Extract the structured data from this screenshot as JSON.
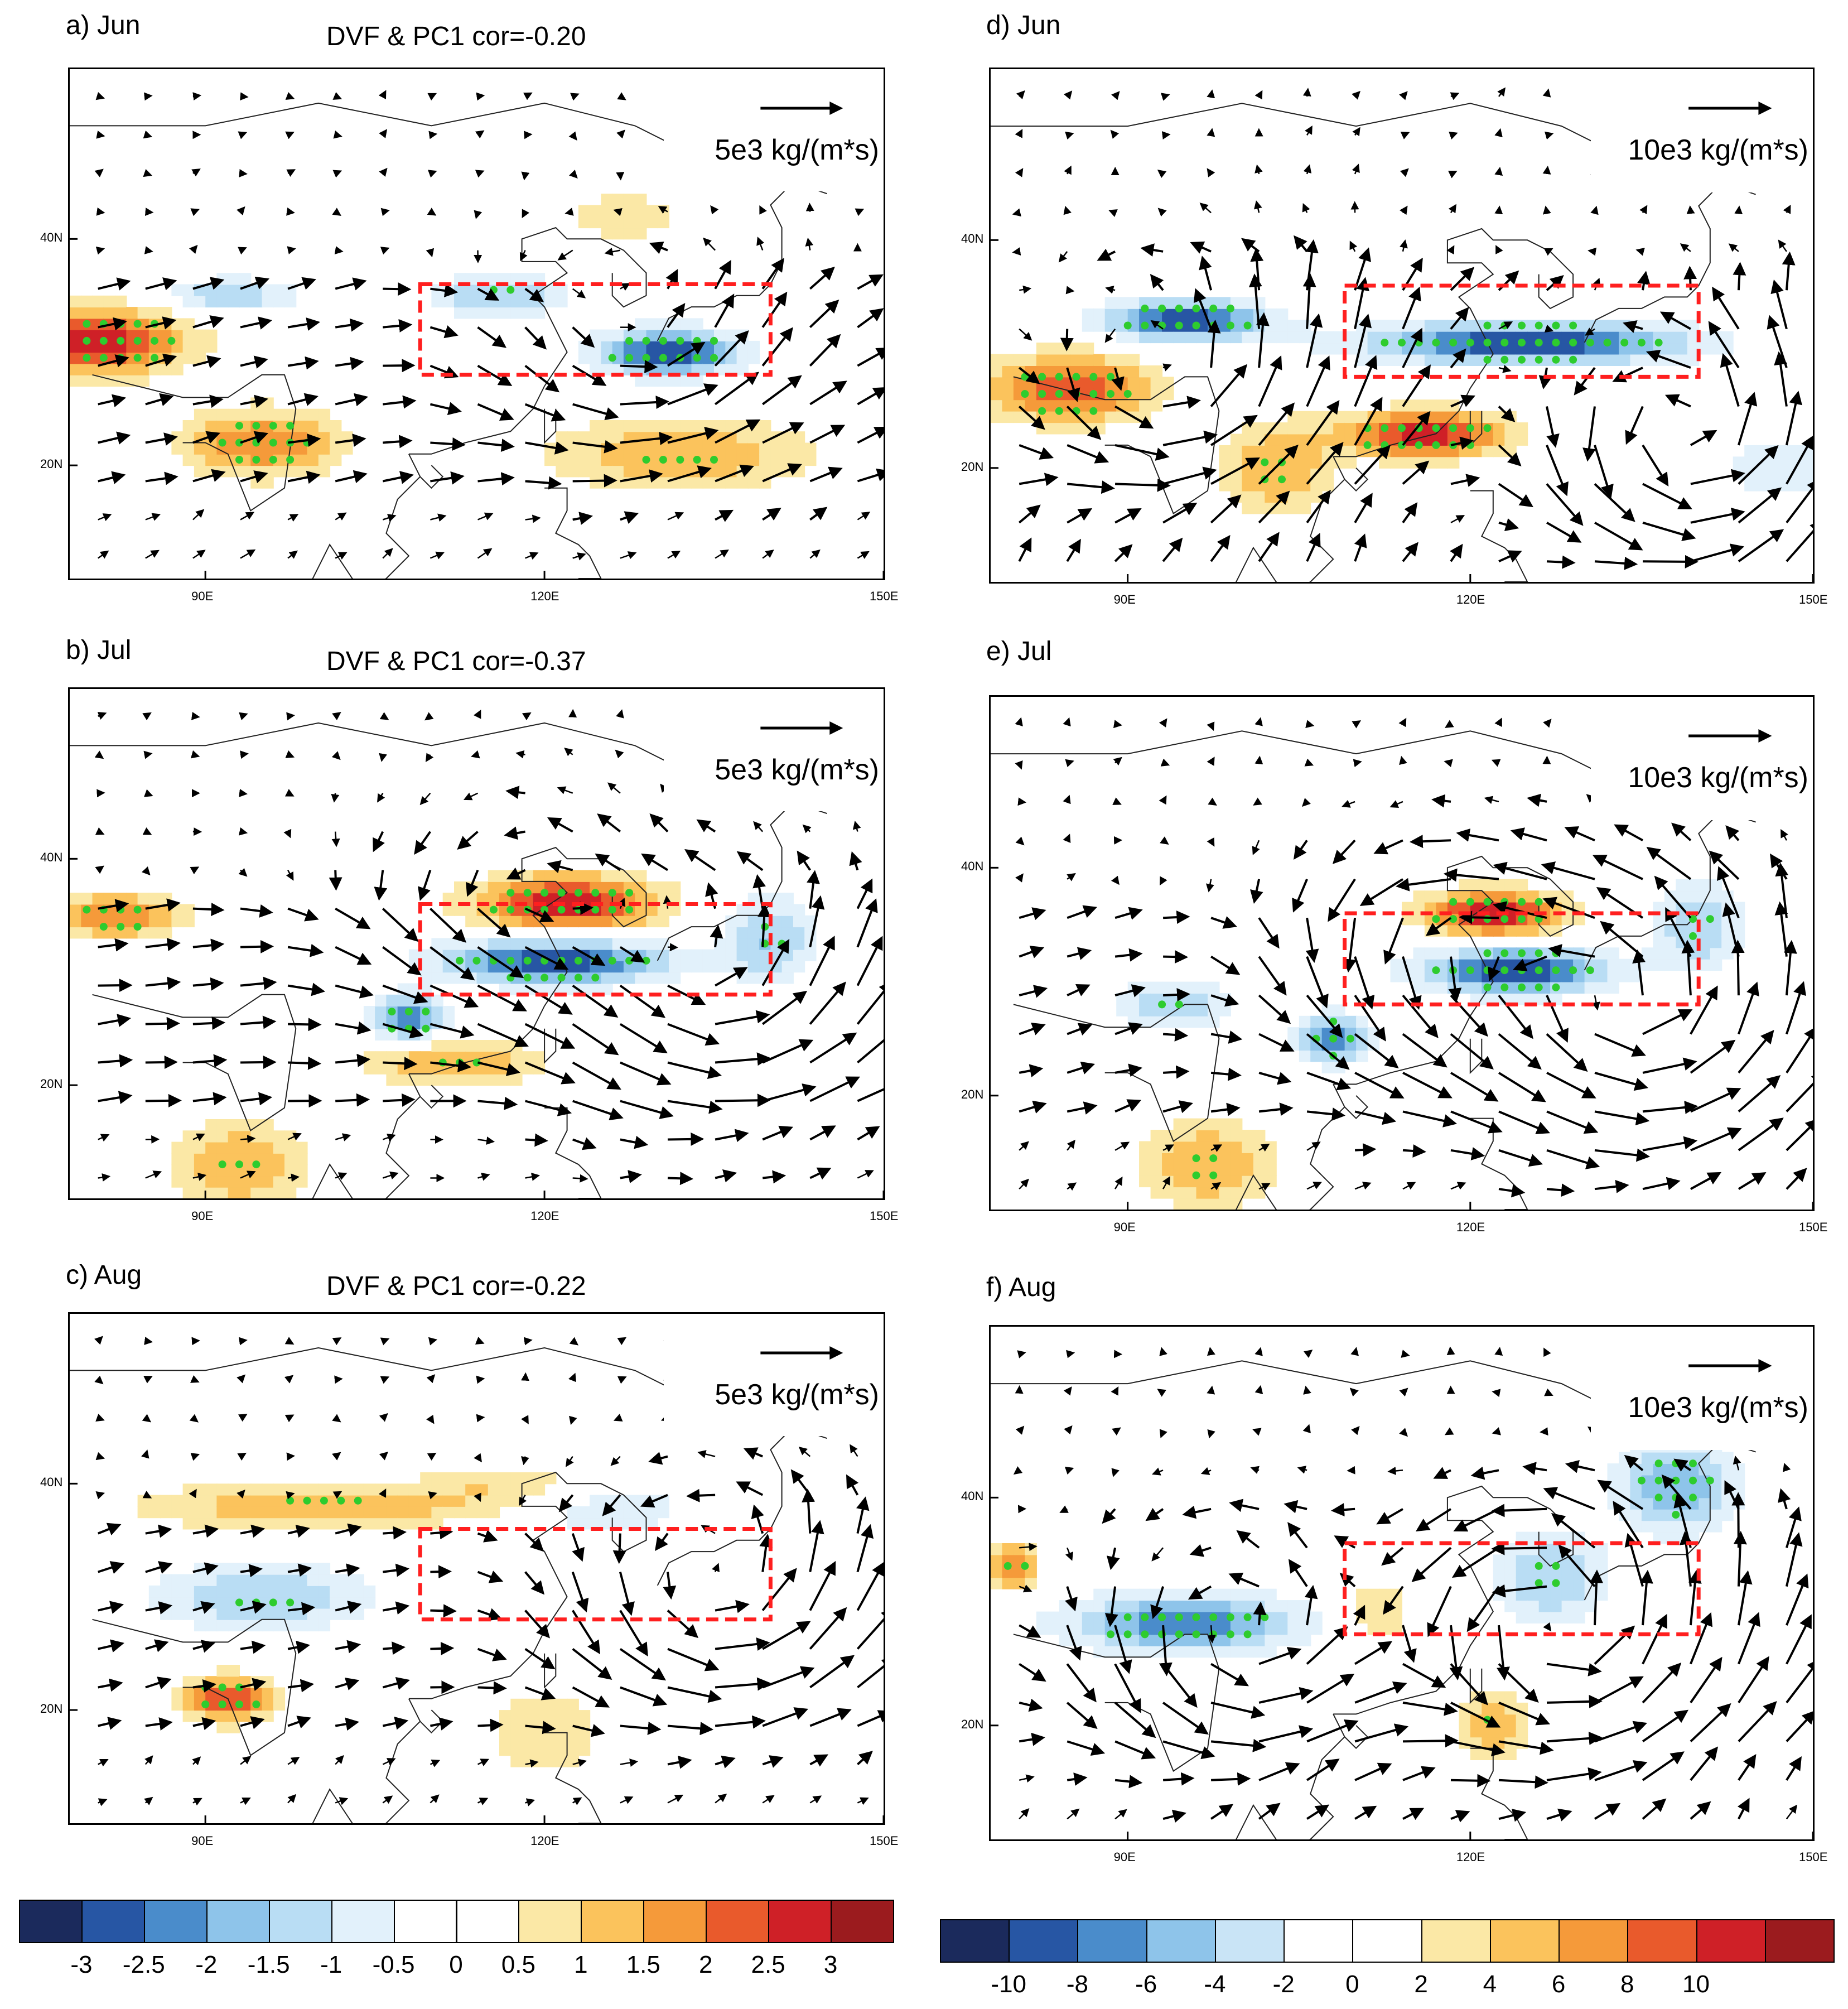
{
  "panels": [
    {
      "id": "a",
      "label": "a) Jun",
      "title": "DVF & PC1 cor=-0.20",
      "ref_vector": "5e3 kg/(m*s)",
      "lat_ticks": [
        "40N",
        "20N"
      ],
      "lon_ticks": [
        "90E",
        "120E",
        "150E"
      ]
    },
    {
      "id": "b",
      "label": "b) Jul",
      "title": "DVF & PC1 cor=-0.37",
      "ref_vector": "5e3 kg/(m*s)",
      "lat_ticks": [
        "40N",
        "20N"
      ],
      "lon_ticks": [
        "90E",
        "120E",
        "150E"
      ]
    },
    {
      "id": "c",
      "label": "c) Aug",
      "title": "DVF & PC1 cor=-0.22",
      "ref_vector": "5e3 kg/(m*s)",
      "lat_ticks": [
        "40N",
        "20N"
      ],
      "lon_ticks": [
        "90E",
        "120E",
        "150E"
      ]
    },
    {
      "id": "d",
      "label": "d) Jun",
      "title": "",
      "ref_vector": "10e3 kg/(m*s)",
      "lat_ticks": [
        "40N",
        "20N"
      ],
      "lon_ticks": [
        "90E",
        "120E",
        "150E"
      ]
    },
    {
      "id": "e",
      "label": "e) Jul",
      "title": "",
      "ref_vector": "10e3 kg/(m*s)",
      "lat_ticks": [
        "40N",
        "20N"
      ],
      "lon_ticks": [
        "90E",
        "120E",
        "150E"
      ]
    },
    {
      "id": "f",
      "label": "f) Aug",
      "title": "",
      "ref_vector": "10e3 kg/(m*s)",
      "lat_ticks": [
        "40N",
        "20N"
      ],
      "lon_ticks": [
        "90E",
        "120E",
        "150E"
      ]
    }
  ],
  "colorbar_left": {
    "labels": [
      "-3",
      "-2.5",
      "-2",
      "-1.5",
      "-1",
      "-0.5",
      "0",
      "0.5",
      "1",
      "1.5",
      "2",
      "2.5",
      "3"
    ],
    "colors": [
      "#1b2a5c",
      "#2756a4",
      "#4a8ccb",
      "#8ec4ea",
      "#b9ddf4",
      "#e2f1fb",
      "#ffffff",
      "#ffffff",
      "#fbe8a6",
      "#fbc35c",
      "#f59a3a",
      "#e95a2c",
      "#cf2027",
      "#9b1b1e"
    ]
  },
  "colorbar_right": {
    "labels": [
      "-10",
      "-8",
      "-6",
      "-4",
      "-2",
      "0",
      "2",
      "4",
      "6",
      "8",
      "10"
    ],
    "colors": [
      "#1b2a5c",
      "#2756a4",
      "#4a8ccb",
      "#8ec4ea",
      "#c9e4f6",
      "#ffffff",
      "#ffffff",
      "#fbe8a6",
      "#fbc35c",
      "#f59a3a",
      "#e95a2c",
      "#cf2027",
      "#9b1b1e"
    ]
  },
  "map_extent": {
    "lon": [
      78,
      150
    ],
    "lat": [
      10,
      55
    ]
  },
  "key_region": {
    "lon": [
      109,
      140
    ],
    "lat": [
      28,
      36
    ]
  },
  "colors": {
    "box": "#ff1f1f",
    "stipple": "#2ecc2e",
    "arrow": "#000000"
  }
}
